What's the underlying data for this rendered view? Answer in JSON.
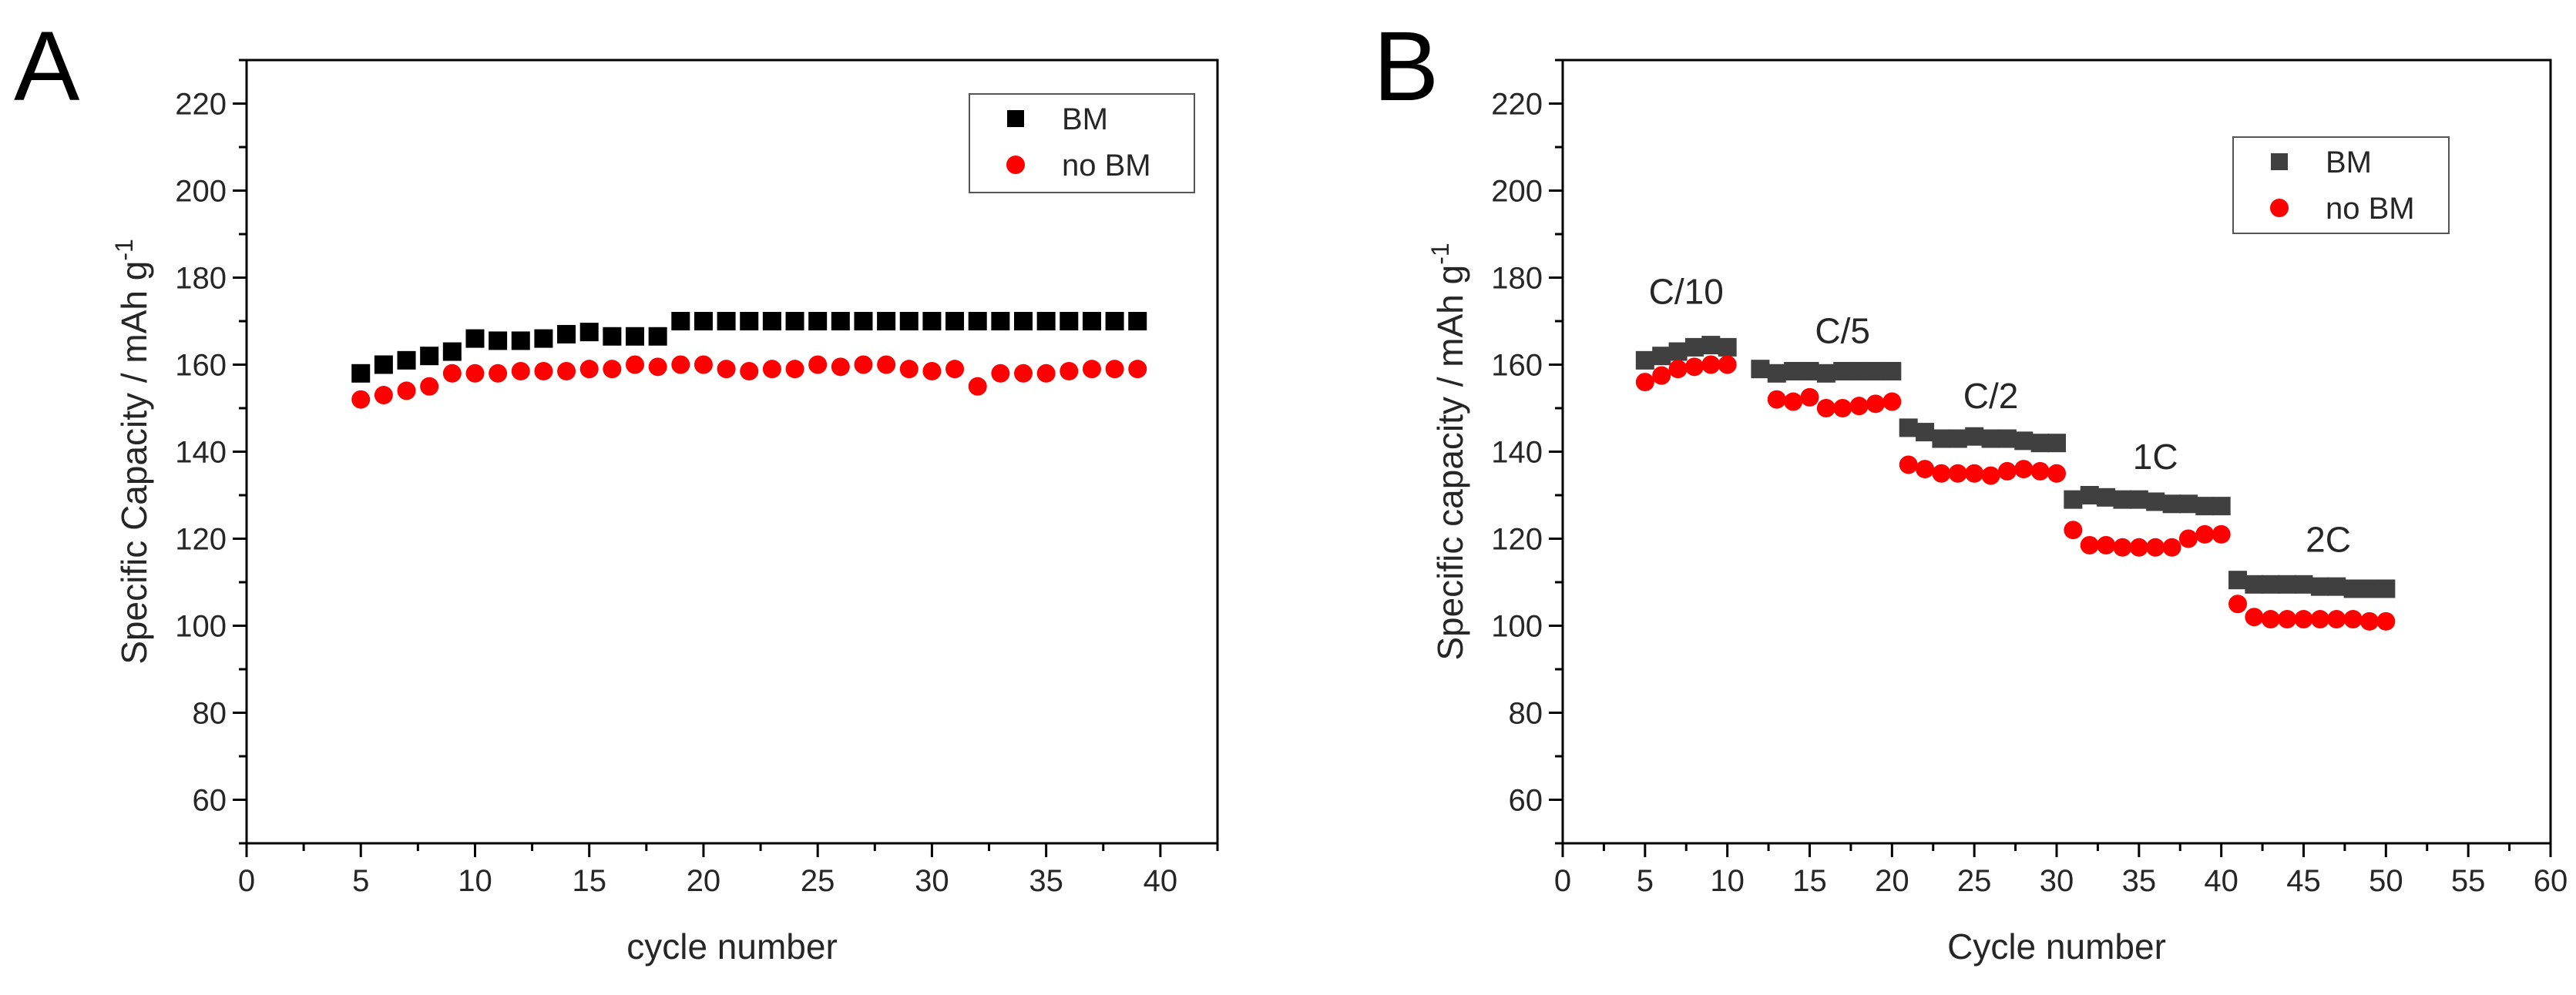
{
  "colors": {
    "bm_a": "#000000",
    "bm_b": "#404040",
    "no_bm": "#ff0000",
    "axis": "#000000",
    "text": "#262626"
  },
  "chart_data": [
    {
      "panel_label": "A",
      "type": "scatter",
      "title": "",
      "xlabel": "cycle number",
      "ylabel_main": "Specific Capacity / mAh g",
      "ylabel_sup": "-1",
      "xlim": [
        0,
        42.5
      ],
      "ylim": [
        50,
        230
      ],
      "xticks": [
        0,
        5,
        10,
        15,
        20,
        25,
        30,
        35,
        40
      ],
      "yticks": [
        60,
        80,
        100,
        120,
        140,
        160,
        180,
        200,
        220
      ],
      "legend_position": "top-right",
      "series": [
        {
          "name": "BM",
          "marker": "square",
          "color": "#000000",
          "x": [
            5,
            6,
            7,
            8,
            9,
            10,
            11,
            12,
            13,
            14,
            15,
            16,
            17,
            18,
            19,
            20,
            21,
            22,
            23,
            24,
            25,
            26,
            27,
            28,
            29,
            30,
            31,
            32,
            33,
            34,
            35,
            36,
            37,
            38,
            39
          ],
          "y": [
            158,
            160,
            161,
            162,
            163,
            166,
            165.5,
            165.5,
            166,
            167,
            167.5,
            166.5,
            166.5,
            166.5,
            170,
            170,
            170,
            170,
            170,
            170,
            170,
            170,
            170,
            170,
            170,
            170,
            170,
            170,
            170,
            170,
            170,
            170,
            170,
            170,
            170
          ]
        },
        {
          "name": "no BM",
          "marker": "circle",
          "color": "#ff0000",
          "x": [
            5,
            6,
            7,
            8,
            9,
            10,
            11,
            12,
            13,
            14,
            15,
            16,
            17,
            18,
            19,
            20,
            21,
            22,
            23,
            24,
            25,
            26,
            27,
            28,
            29,
            30,
            31,
            32,
            33,
            34,
            35,
            36,
            37,
            38,
            39
          ],
          "y": [
            152,
            153,
            154,
            155,
            158,
            158,
            158,
            158.5,
            158.5,
            158.5,
            159,
            159,
            160,
            159.5,
            160,
            160,
            159,
            158.5,
            159,
            159,
            160,
            159.5,
            160,
            160,
            159,
            158.5,
            159,
            155,
            158,
            158,
            158,
            158.5,
            159,
            159,
            159
          ]
        }
      ]
    },
    {
      "panel_label": "B",
      "type": "scatter",
      "title": "",
      "xlabel": "Cycle number",
      "ylabel_main": "Specific capacity / mAh g",
      "ylabel_sup": "-1",
      "xlim": [
        0,
        60
      ],
      "ylim": [
        50,
        230
      ],
      "xticks": [
        0,
        5,
        10,
        15,
        20,
        25,
        30,
        35,
        40,
        45,
        50,
        55,
        60
      ],
      "yticks": [
        60,
        80,
        100,
        120,
        140,
        160,
        180,
        200,
        220
      ],
      "legend_position": "top-right",
      "annotations": [
        {
          "text": "C/10",
          "x": 7.5,
          "y": 174
        },
        {
          "text": "C/5",
          "x": 17,
          "y": 165
        },
        {
          "text": "C/2",
          "x": 26,
          "y": 150
        },
        {
          "text": "1C",
          "x": 36,
          "y": 136
        },
        {
          "text": "2C",
          "x": 46.5,
          "y": 117
        }
      ],
      "series": [
        {
          "name": "BM",
          "marker": "square",
          "color": "#404040",
          "x": [
            5,
            6,
            7,
            8,
            9,
            10,
            12,
            13,
            14,
            15,
            16,
            17,
            18,
            19,
            20,
            21,
            22,
            23,
            24,
            25,
            26,
            27,
            28,
            29,
            30,
            31,
            32,
            33,
            34,
            35,
            36,
            37,
            38,
            39,
            40,
            41,
            42,
            43,
            44,
            45,
            46,
            47,
            48,
            49,
            50
          ],
          "y": [
            161,
            162,
            163,
            164,
            164.5,
            164,
            159,
            158,
            158.5,
            158.5,
            158,
            158.5,
            158.5,
            158.5,
            158.5,
            145.5,
            144.5,
            143,
            143,
            143.5,
            143,
            143,
            142.5,
            142,
            142,
            129,
            130,
            129.5,
            129,
            129,
            128.5,
            128,
            128,
            127.5,
            127.5,
            110.5,
            109.5,
            109.5,
            109.5,
            109.5,
            109,
            109,
            108.5,
            108.5,
            108.5
          ]
        },
        {
          "name": "no BM",
          "marker": "circle",
          "color": "#ff0000",
          "x": [
            5,
            6,
            7,
            8,
            9,
            10,
            13,
            14,
            15,
            16,
            17,
            18,
            19,
            20,
            21,
            22,
            23,
            24,
            25,
            26,
            27,
            28,
            29,
            30,
            31,
            32,
            33,
            34,
            35,
            36,
            37,
            38,
            39,
            40,
            41,
            42,
            43,
            44,
            45,
            46,
            47,
            48,
            49,
            50
          ],
          "y": [
            156,
            157.5,
            159,
            159.5,
            160,
            160,
            152,
            151.5,
            152.5,
            150,
            150,
            150.5,
            151,
            151.5,
            137,
            136,
            135,
            135,
            135,
            134.5,
            135.5,
            136,
            135.5,
            135,
            122,
            118.5,
            118.5,
            118,
            118,
            118,
            118,
            120,
            121,
            121,
            105,
            102,
            101.5,
            101.5,
            101.5,
            101.5,
            101.5,
            101.5,
            101,
            101
          ]
        }
      ]
    }
  ]
}
